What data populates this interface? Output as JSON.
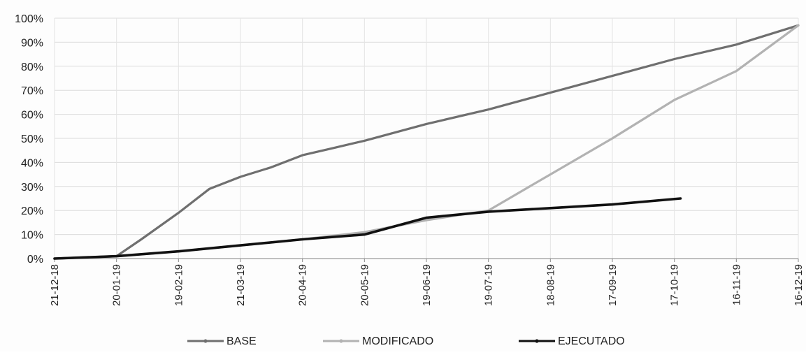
{
  "chart_data": {
    "type": "line",
    "title": "",
    "xlabel": "",
    "ylabel": "",
    "ylim": [
      0,
      100
    ],
    "grid": true,
    "legend_placement": "bottom",
    "y_ticks": [
      "0%",
      "10%",
      "20%",
      "30%",
      "40%",
      "50%",
      "60%",
      "70%",
      "80%",
      "90%",
      "100%"
    ],
    "x_ticks": [
      "21-12-18",
      "20-01-19",
      "19-02-19",
      "21-03-19",
      "20-04-19",
      "20-05-19",
      "19-06-19",
      "19-07-19",
      "18-08-19",
      "17-09-19",
      "17-10-19",
      "16-11-19",
      "16-12-19"
    ],
    "x_range": [
      "2018-12-21",
      "2019-12-16"
    ],
    "series": [
      {
        "name": "BASE",
        "color": "#6f6f6f",
        "points": [
          [
            "2018-12-21",
            0
          ],
          [
            "2019-01-20",
            1
          ],
          [
            "2019-02-01",
            8
          ],
          [
            "2019-02-19",
            19
          ],
          [
            "2019-03-06",
            29
          ],
          [
            "2019-03-21",
            34
          ],
          [
            "2019-04-05",
            38
          ],
          [
            "2019-04-20",
            43
          ],
          [
            "2019-05-05",
            46
          ],
          [
            "2019-05-20",
            49
          ],
          [
            "2019-06-19",
            56
          ],
          [
            "2019-07-19",
            62
          ],
          [
            "2019-08-18",
            69
          ],
          [
            "2019-09-17",
            76
          ],
          [
            "2019-10-17",
            83
          ],
          [
            "2019-11-16",
            89
          ],
          [
            "2019-12-16",
            97
          ]
        ]
      },
      {
        "name": "MODIFICADO",
        "color": "#b2b2b2",
        "points": [
          [
            "2018-12-21",
            0
          ],
          [
            "2019-01-20",
            1
          ],
          [
            "2019-02-19",
            3
          ],
          [
            "2019-03-21",
            5.5
          ],
          [
            "2019-04-20",
            8
          ],
          [
            "2019-05-20",
            11
          ],
          [
            "2019-06-19",
            16
          ],
          [
            "2019-07-19",
            20
          ],
          [
            "2019-08-18",
            35
          ],
          [
            "2019-09-17",
            50
          ],
          [
            "2019-10-17",
            66
          ],
          [
            "2019-11-16",
            78
          ],
          [
            "2019-12-16",
            97
          ]
        ]
      },
      {
        "name": "EJECUTADO",
        "color": "#111111",
        "points": [
          [
            "2018-12-21",
            0
          ],
          [
            "2019-01-20",
            1
          ],
          [
            "2019-02-19",
            3
          ],
          [
            "2019-03-21",
            5.5
          ],
          [
            "2019-04-20",
            8
          ],
          [
            "2019-05-20",
            10
          ],
          [
            "2019-06-19",
            17
          ],
          [
            "2019-07-19",
            19.5
          ],
          [
            "2019-08-18",
            21
          ],
          [
            "2019-09-17",
            22.5
          ],
          [
            "2019-10-20",
            25
          ]
        ]
      }
    ]
  }
}
